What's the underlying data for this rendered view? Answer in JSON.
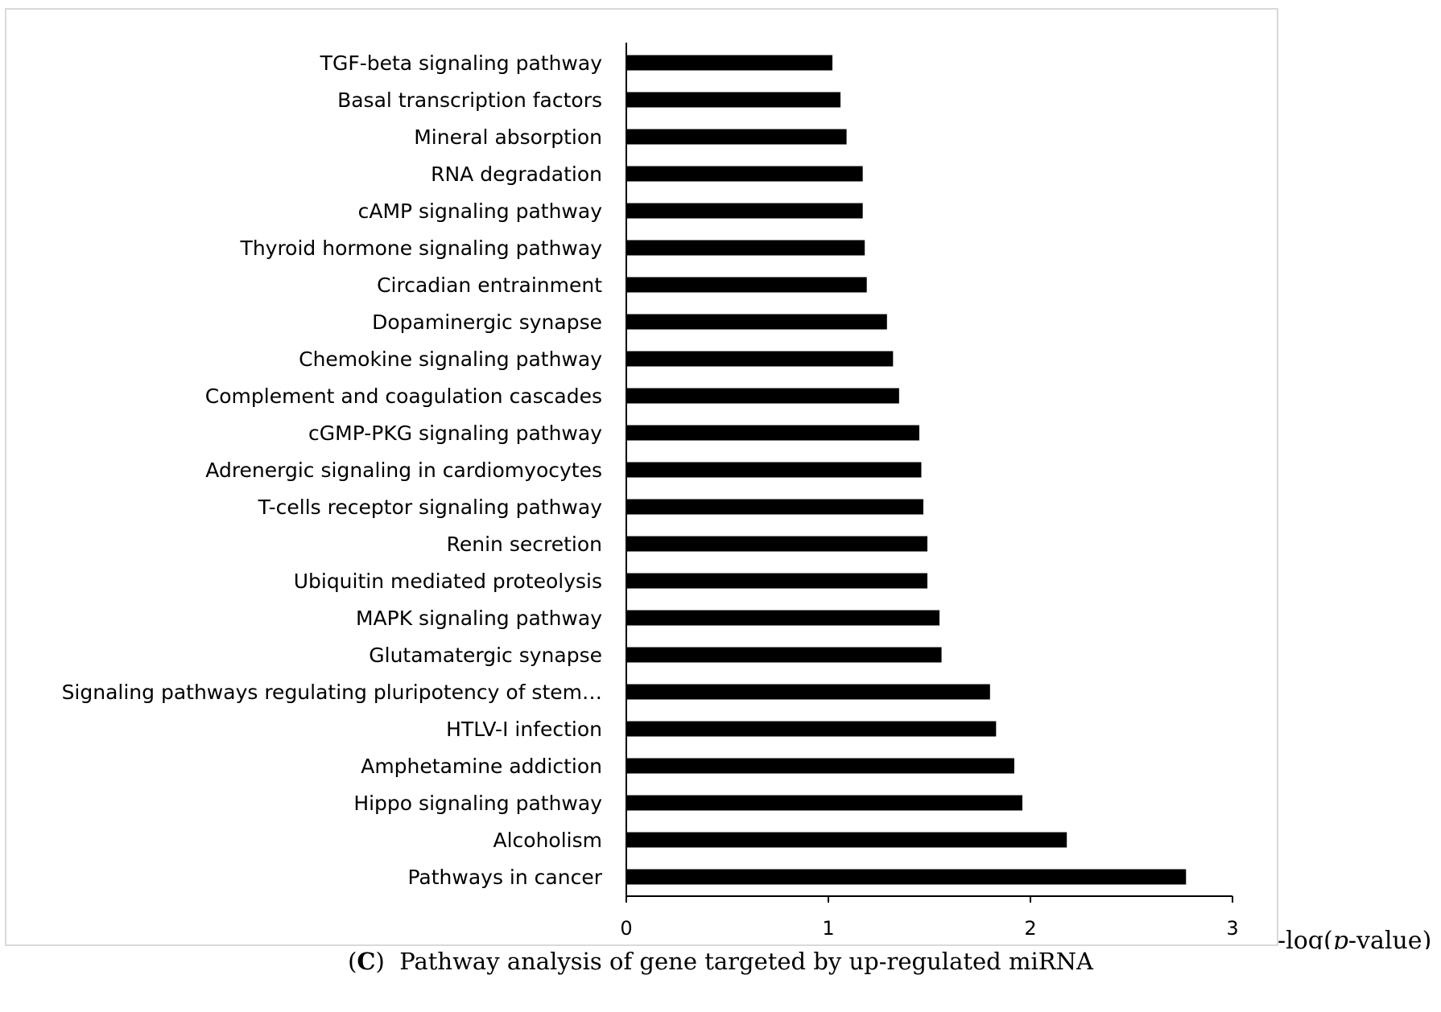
{
  "chart_data": {
    "type": "bar",
    "orientation": "horizontal",
    "categories": [
      "TGF-beta signaling pathway",
      "Basal transcription factors",
      "Mineral absorption",
      "RNA degradation",
      "cAMP signaling pathway",
      "Thyroid hormone signaling pathway",
      "Circadian entrainment",
      "Dopaminergic synapse",
      "Chemokine signaling pathway",
      "Complement and coagulation cascades",
      "cGMP-PKG signaling pathway",
      "Adrenergic signaling in cardiomyocytes",
      "T-cells receptor signaling pathway",
      "Renin secretion",
      "Ubiquitin mediated proteolysis",
      "MAPK signaling pathway",
      "Glutamatergic synapse",
      "Signaling pathways regulating pluripotency of stem…",
      "HTLV-I infection",
      "Amphetamine addiction",
      "Hippo signaling pathway",
      "Alcoholism",
      "Pathways in cancer"
    ],
    "values": [
      1.02,
      1.06,
      1.09,
      1.17,
      1.17,
      1.18,
      1.19,
      1.29,
      1.32,
      1.35,
      1.45,
      1.46,
      1.47,
      1.49,
      1.49,
      1.55,
      1.56,
      1.8,
      1.83,
      1.92,
      1.96,
      2.18,
      2.77
    ],
    "xlim": [
      0,
      3
    ],
    "xticks": [
      "0",
      "1",
      "2",
      "3"
    ],
    "xlabel_prefix": "-log(",
    "xlabel_italic": "p",
    "xlabel_suffix": "-value)",
    "ylabel": "",
    "bar_color": "#000000",
    "grid": false
  },
  "caption": {
    "open": "(",
    "letter": "C",
    "close": ")",
    "text": "Pathway analysis of gene targeted by up-regulated miRNA"
  }
}
